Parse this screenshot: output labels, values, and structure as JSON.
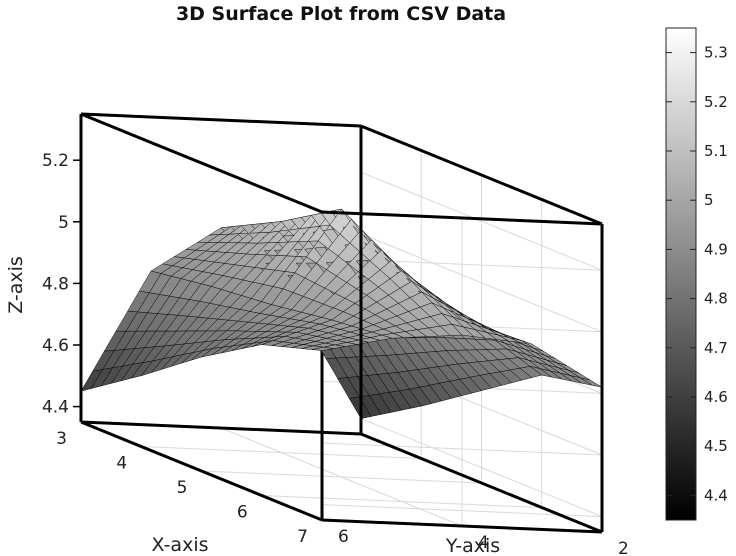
{
  "chart_data": {
    "type": "surface3d",
    "title": "3D Surface Plot from CSV Data",
    "xlabel": "X-axis",
    "ylabel": "Y-axis",
    "zlabel": "Z-axis",
    "xlim": [
      3,
      7
    ],
    "ylim": [
      2,
      6
    ],
    "zlim": [
      4.35,
      5.35
    ],
    "x_ticks": [
      "3",
      "4",
      "5",
      "6",
      "7"
    ],
    "y_ticks": [
      "2",
      "4",
      "6"
    ],
    "z_ticks": [
      "4.4",
      "4.6",
      "4.8",
      "5",
      "5.2"
    ],
    "colorbar": {
      "range": [
        4.35,
        5.35
      ],
      "ticks": [
        "4.4",
        "4.5",
        "4.6",
        "4.7",
        "4.8",
        "4.9",
        "5",
        "5.1",
        "5.2",
        "5.3"
      ],
      "colormap": "gray"
    },
    "x": [
      3,
      4,
      5,
      6,
      7
    ],
    "y": [
      2,
      3,
      4,
      5,
      6
    ],
    "z": [
      [
        4.4,
        4.52,
        4.65,
        4.78,
        4.82
      ],
      [
        4.78,
        4.84,
        4.9,
        4.94,
        4.95
      ],
      [
        5.0,
        5.1,
        5.22,
        5.1,
        4.97
      ],
      [
        4.85,
        4.88,
        4.9,
        4.93,
        4.95
      ],
      [
        4.45,
        4.58,
        4.72,
        4.84,
        4.9
      ]
    ],
    "grid": true,
    "colors": {
      "box": "#000000",
      "grid": "#d9d9d9",
      "mesh": "#000000"
    }
  }
}
